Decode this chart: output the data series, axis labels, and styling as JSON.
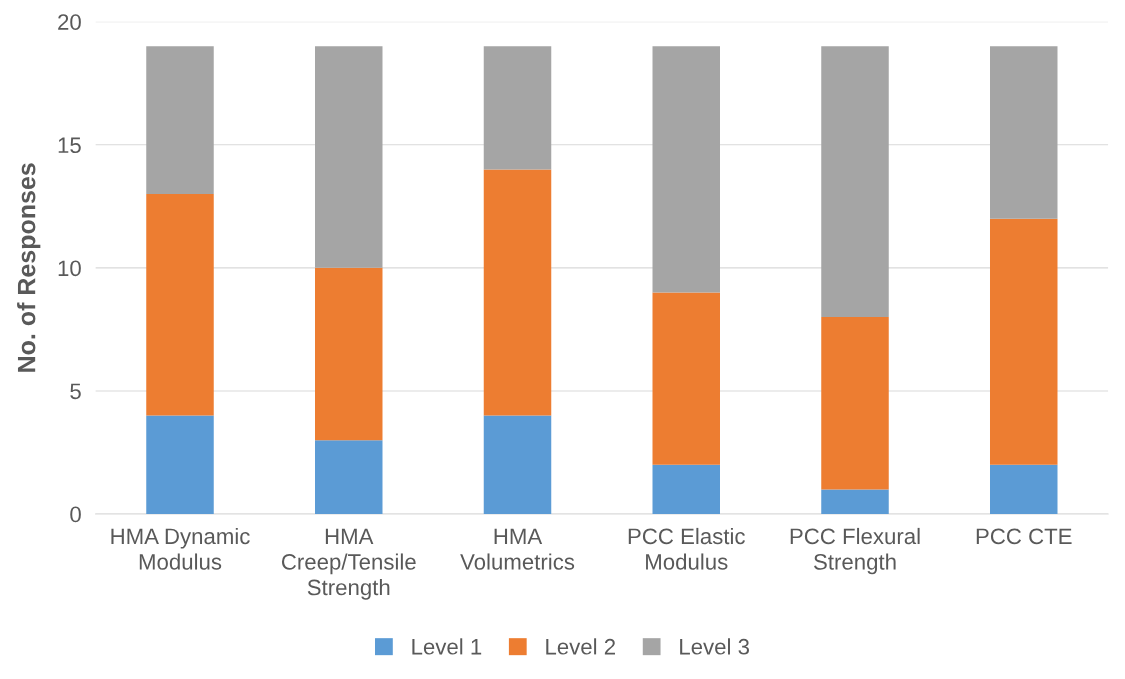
{
  "chart_data": {
    "type": "bar",
    "stacked": true,
    "ylabel": "No. of Responses",
    "categories": [
      "HMA Dynamic Modulus",
      "HMA Creep/Tensile Strength",
      "HMA Volumetrics",
      "PCC Elastic Modulus",
      "PCC Flexural Strength",
      "PCC CTE"
    ],
    "series": [
      {
        "name": "Level 1",
        "color": "#5b9bd5",
        "values": [
          4,
          3,
          4,
          2,
          1,
          2
        ]
      },
      {
        "name": "Level 2",
        "color": "#ed7d31",
        "values": [
          9,
          7,
          10,
          7,
          7,
          10
        ]
      },
      {
        "name": "Level 3",
        "color": "#a5a5a5",
        "values": [
          6,
          9,
          5,
          10,
          11,
          7
        ]
      }
    ],
    "ylim": [
      0,
      20
    ],
    "yticks": [
      0,
      5,
      10,
      15,
      20
    ],
    "grid": "y",
    "legend": "bottom"
  }
}
